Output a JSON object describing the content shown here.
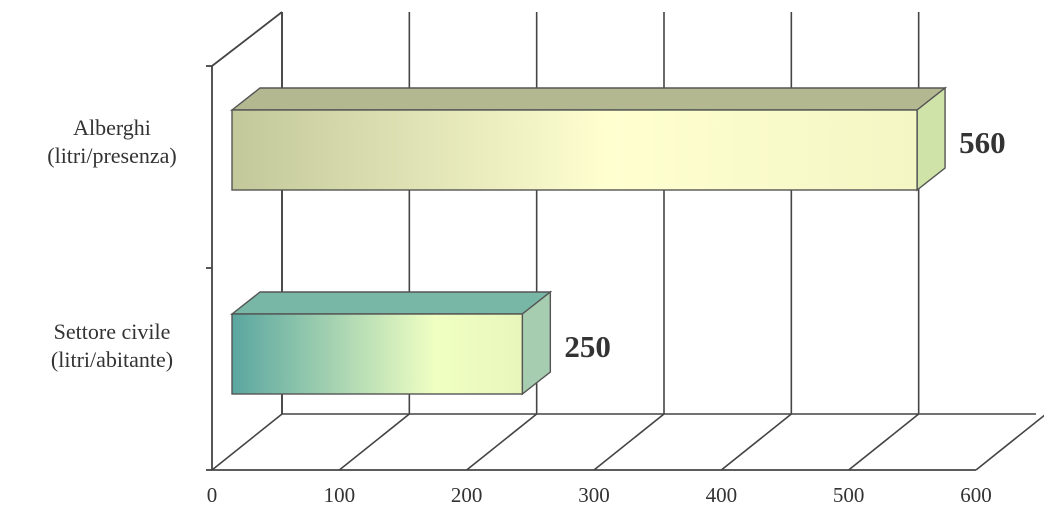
{
  "chart_data": {
    "type": "bar",
    "orientation": "horizontal",
    "style": "3d",
    "categories": [
      [
        "Alberghi",
        "(litri/presenza)"
      ],
      [
        "Settore civile",
        "(litri/abitante)"
      ]
    ],
    "values": [
      560,
      250
    ],
    "data_labels": [
      "560",
      "250"
    ],
    "x_ticks": [
      "0",
      "100",
      "200",
      "300",
      "400",
      "500",
      "600"
    ],
    "xlim": [
      0,
      600
    ],
    "grid": true,
    "legend": false,
    "colors": {
      "alberghi": {
        "light": "#ffffd0",
        "dark": "#c2c89a",
        "top": "#b4b890",
        "side": "#cfe2a8"
      },
      "settore": {
        "light": "#f0ffc2",
        "dark": "#5aa6a0",
        "top": "#78b6a6",
        "side": "#a7cdb1"
      }
    }
  }
}
